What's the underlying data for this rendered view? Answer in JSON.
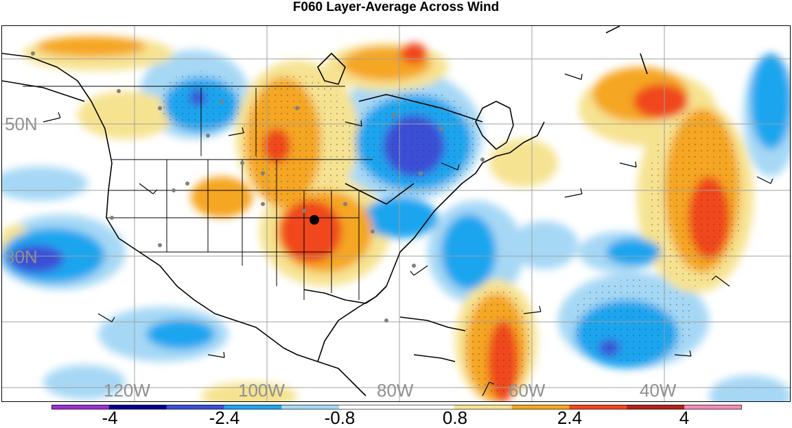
{
  "title": "F060 Layer-Average Across Wind",
  "map": {
    "lat_labels": [
      "50N",
      "30N"
    ],
    "lon_labels": [
      "120W",
      "100W",
      "80W",
      "60W",
      "40W"
    ],
    "marker": "black-dot-marker"
  },
  "colorbar": {
    "colors": [
      "#9b30d0",
      "#00008b",
      "#3a50d6",
      "#1fa5ef",
      "#a6d8f5",
      "#ffffff",
      "#ffffff",
      "#f6e391",
      "#f5a623",
      "#f0461e",
      "#b0241a",
      "#f08cb8"
    ],
    "labels": [
      "-4",
      "-2.4",
      "-0.8",
      "0.8",
      "2.4",
      "4"
    ]
  },
  "colors": {
    "strong_negative": "#3a50d6",
    "negative": "#1fa5ef",
    "weak_negative": "#a6d8f5",
    "weak_positive": "#f6e391",
    "positive": "#f5a623",
    "strong_positive": "#f0461e"
  }
}
